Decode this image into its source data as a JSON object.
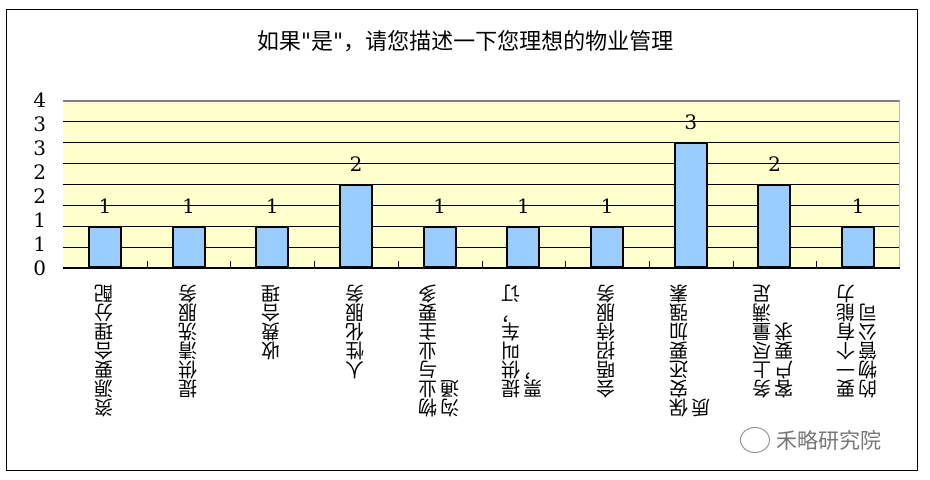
{
  "chart_data": {
    "type": "bar",
    "title": "如果\"是\"，请您描述一下您理想的物业管理",
    "categories": [
      "资源要合理分配",
      "提供清洗服务",
      "收费合理",
      "人性化服务",
      "物业与业主要多沟通",
      "提供叫车，订票，",
      "会晤招待服务",
      "保安还要加强素质",
      "务上尽量满足客户要求",
      "要一个有能力的物管公司"
    ],
    "values": [
      1,
      1,
      1,
      2,
      1,
      1,
      1,
      3,
      2,
      1
    ],
    "ytick_labels": [
      "0",
      "1",
      "1",
      "2",
      "2",
      "3",
      "3",
      "4"
    ],
    "ylim": [
      0,
      4
    ],
    "xlabel": "",
    "ylabel": "",
    "grid": true,
    "legend": "none",
    "bar_color": "#99ccff",
    "plot_background": "#ffffcc"
  },
  "axis_labels_wrapped": [
    "资源要合理分配",
    "提供清洗服务",
    "收费合理",
    "人性化服务",
    "物业与业主要多\n沟通",
    "提供叫车，订\n票，",
    "会晤招待服务",
    "保安还要加强素\n质",
    "务上尽量满足\n客户要求",
    "要一个有能力\n的物管公司"
  ],
  "watermark": "禾略研究院"
}
